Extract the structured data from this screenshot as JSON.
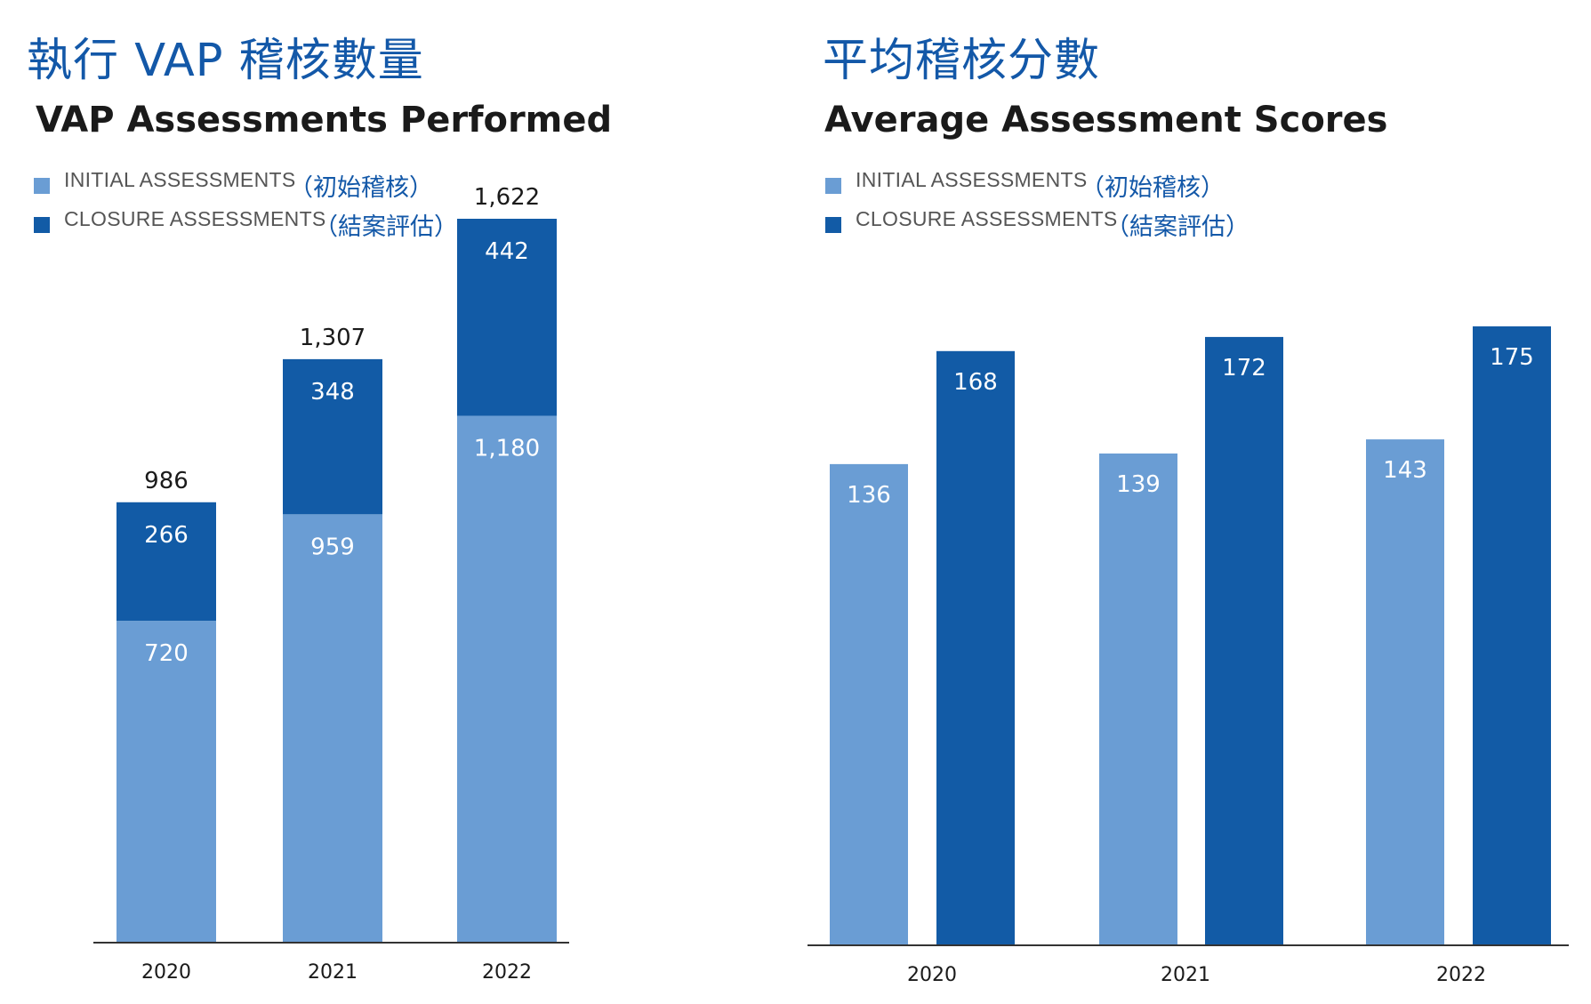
{
  "colors": {
    "initial": "#6a9dd4",
    "closure": "#125ba6",
    "axis": "#333333"
  },
  "chart_data": [
    {
      "type": "bar",
      "stacked": true,
      "title_zh": "執行 VAP 稽核數量",
      "title": "VAP Assessments Performed",
      "legend": [
        {
          "label": "INITIAL ASSESSMENTS",
          "label_zh": "（初始稽核）",
          "color": "#6a9dd4"
        },
        {
          "label": "CLOSURE ASSESSMENTS",
          "label_zh": "（結案評估）",
          "color": "#125ba6"
        }
      ],
      "categories": [
        "2020",
        "2021",
        "2022"
      ],
      "series": [
        {
          "name": "INITIAL ASSESSMENTS",
          "values": [
            720,
            959,
            1180
          ],
          "labels": [
            "720",
            "959",
            "1,180"
          ]
        },
        {
          "name": "CLOSURE ASSESSMENTS",
          "values": [
            266,
            348,
            442
          ],
          "labels": [
            "266",
            "348",
            "442"
          ]
        }
      ],
      "totals": [
        986,
        1307,
        1622
      ],
      "total_labels": [
        "986",
        "1,307",
        "1,622"
      ],
      "ylim": [
        0,
        1622
      ]
    },
    {
      "type": "bar",
      "stacked": false,
      "title_zh": "平均稽核分數",
      "title": "Average Assessment Scores",
      "legend": [
        {
          "label": "INITIAL ASSESSMENTS",
          "label_zh": "（初始稽核）",
          "color": "#6a9dd4"
        },
        {
          "label": "CLOSURE ASSESSMENTS",
          "label_zh": "（結案評估）",
          "color": "#125ba6"
        }
      ],
      "categories": [
        "2020",
        "2021",
        "2022"
      ],
      "series": [
        {
          "name": "INITIAL ASSESSMENTS",
          "values": [
            136,
            139,
            143
          ],
          "labels": [
            "136",
            "139",
            "143"
          ]
        },
        {
          "name": "CLOSURE ASSESSMENTS",
          "values": [
            168,
            172,
            175
          ],
          "labels": [
            "168",
            "172",
            "175"
          ]
        }
      ],
      "ylim": [
        0,
        175
      ]
    }
  ]
}
